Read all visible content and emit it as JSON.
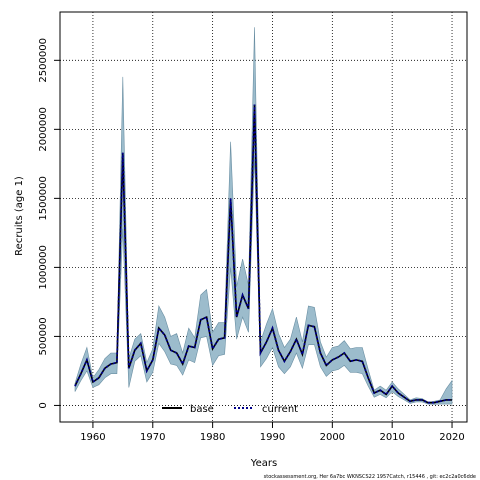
{
  "chart_data": {
    "type": "area",
    "xlabel": "Years",
    "ylabel": "Recruits (age 1)",
    "xlim": [
      1954.5,
      2022.5
    ],
    "ylim": [
      -120000,
      2850000
    ],
    "x_ticks": [
      1960,
      1970,
      1980,
      1990,
      2000,
      2010,
      2020
    ],
    "x_tick_labels": [
      "1960",
      "1970",
      "1980",
      "1990",
      "2000",
      "2010",
      "2020"
    ],
    "y_ticks": [
      0,
      500000,
      1000000,
      1500000,
      2000000,
      2500000
    ],
    "y_tick_labels": [
      "0",
      "500000",
      "1000000",
      "1500000",
      "2000000",
      "2500000"
    ],
    "grid": true,
    "legend_position": "bottom-left",
    "colors": {
      "band": "#9cbccc",
      "band_stroke": "#6a8fa3",
      "base": "#000000",
      "current": "#00008b"
    },
    "x": [
      1957,
      1958,
      1959,
      1960,
      1961,
      1962,
      1963,
      1964,
      1965,
      1966,
      1967,
      1968,
      1969,
      1970,
      1971,
      1972,
      1973,
      1974,
      1975,
      1976,
      1977,
      1978,
      1979,
      1980,
      1981,
      1982,
      1983,
      1984,
      1985,
      1986,
      1987,
      1988,
      1989,
      1990,
      1991,
      1992,
      1993,
      1994,
      1995,
      1996,
      1997,
      1998,
      1999,
      2000,
      2001,
      2002,
      2003,
      2004,
      2005,
      2006,
      2007,
      2008,
      2009,
      2010,
      2011,
      2012,
      2013,
      2014,
      2015,
      2016,
      2017,
      2018,
      2019,
      2020
    ],
    "series": [
      {
        "name": "base",
        "values": [
          140000,
          230000,
          330000,
          170000,
          200000,
          270000,
          300000,
          310000,
          1830000,
          270000,
          400000,
          450000,
          250000,
          330000,
          560000,
          510000,
          400000,
          380000,
          300000,
          430000,
          420000,
          620000,
          640000,
          410000,
          480000,
          490000,
          1500000,
          640000,
          800000,
          700000,
          2180000,
          380000,
          460000,
          560000,
          400000,
          320000,
          390000,
          480000,
          370000,
          580000,
          570000,
          380000,
          290000,
          330000,
          350000,
          380000,
          320000,
          330000,
          320000,
          200000,
          90000,
          110000,
          80000,
          140000,
          90000,
          60000,
          30000,
          40000,
          40000,
          20000,
          20000,
          30000,
          40000,
          40000
        ]
      },
      {
        "name": "current",
        "values": [
          140000,
          230000,
          330000,
          170000,
          200000,
          270000,
          300000,
          310000,
          1830000,
          270000,
          400000,
          450000,
          250000,
          330000,
          560000,
          510000,
          400000,
          380000,
          300000,
          430000,
          420000,
          620000,
          640000,
          410000,
          480000,
          490000,
          1500000,
          640000,
          800000,
          700000,
          2180000,
          380000,
          460000,
          560000,
          400000,
          320000,
          390000,
          480000,
          370000,
          580000,
          570000,
          380000,
          290000,
          330000,
          350000,
          380000,
          320000,
          330000,
          320000,
          200000,
          90000,
          110000,
          80000,
          140000,
          90000,
          60000,
          30000,
          40000,
          40000,
          20000,
          20000,
          30000,
          40000,
          40000
        ]
      }
    ],
    "band": {
      "upper": [
        160000,
        300000,
        420000,
        200000,
        260000,
        340000,
        380000,
        380000,
        2380000,
        340000,
        480000,
        520000,
        310000,
        410000,
        720000,
        640000,
        500000,
        520000,
        380000,
        560000,
        490000,
        800000,
        840000,
        530000,
        600000,
        600000,
        1910000,
        860000,
        1060000,
        870000,
        2740000,
        460000,
        590000,
        700000,
        520000,
        420000,
        480000,
        640000,
        460000,
        720000,
        710000,
        460000,
        350000,
        420000,
        430000,
        470000,
        410000,
        420000,
        420000,
        260000,
        110000,
        140000,
        110000,
        170000,
        120000,
        80000,
        40000,
        55000,
        50000,
        25000,
        30000,
        40000,
        120000,
        180000
      ],
      "lower": [
        100000,
        180000,
        250000,
        130000,
        150000,
        200000,
        230000,
        230000,
        1280000,
        130000,
        320000,
        360000,
        170000,
        240000,
        450000,
        390000,
        300000,
        290000,
        220000,
        330000,
        310000,
        490000,
        500000,
        290000,
        360000,
        370000,
        1000000,
        480000,
        640000,
        530000,
        1800000,
        280000,
        340000,
        420000,
        280000,
        230000,
        280000,
        380000,
        270000,
        440000,
        440000,
        280000,
        210000,
        250000,
        260000,
        290000,
        240000,
        240000,
        230000,
        140000,
        60000,
        80000,
        55000,
        100000,
        65000,
        40000,
        15000,
        25000,
        25000,
        10000,
        8000,
        10000,
        10000,
        10000
      ]
    },
    "legend": {
      "base": "base",
      "current": "current"
    }
  },
  "footer_text": "stockassessment.org,  Her  6a7bc  WKNSCS22  1957Catch,  r15446  ,  git:  ec2c2a0c6dde"
}
